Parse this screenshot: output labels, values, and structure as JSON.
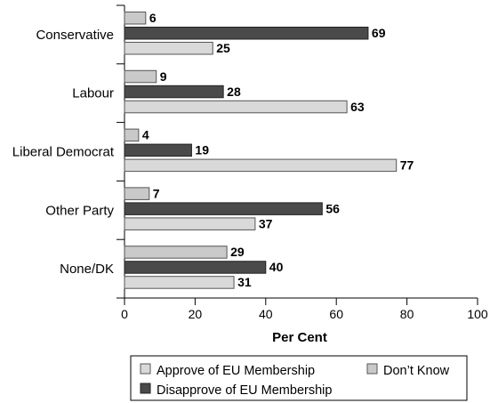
{
  "chart_data": {
    "type": "bar",
    "orientation": "horizontal",
    "categories": [
      "Conservative",
      "Labour",
      "Liberal Democrat",
      "Other Party",
      "None/DK"
    ],
    "series": [
      {
        "name": "Don’t Know",
        "values": [
          6,
          9,
          4,
          7,
          29
        ],
        "color": "#c9c9c9"
      },
      {
        "name": "Disapprove of EU Membership",
        "values": [
          69,
          28,
          19,
          56,
          40
        ],
        "color": "#4a4a4a"
      },
      {
        "name": "Approve of EU Membership",
        "values": [
          25,
          63,
          77,
          37,
          31
        ],
        "color": "#d9d9d9"
      }
    ],
    "xlabel": "Per Cent",
    "ylabel": "",
    "xlim": [
      0,
      100
    ],
    "xticks": [
      0,
      20,
      40,
      60,
      80,
      100
    ],
    "grid": false,
    "legend_position": "bottom",
    "legend_entries": [
      "Approve of EU Membership",
      "Don’t Know",
      "Disapprove of EU Membership"
    ]
  }
}
